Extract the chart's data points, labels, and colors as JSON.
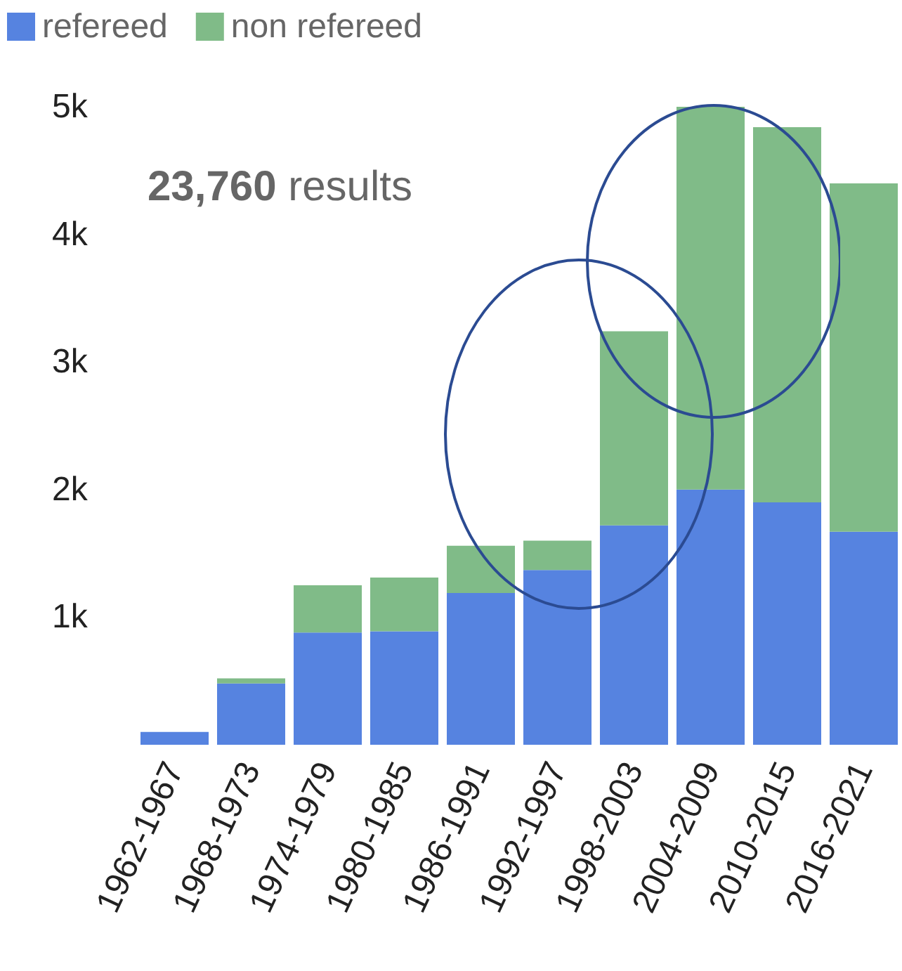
{
  "chart_data": {
    "type": "bar",
    "stacked": true,
    "categories": [
      "1962-1967",
      "1968-1973",
      "1974-1979",
      "1980-1985",
      "1986-1991",
      "1992-1997",
      "1998-2003",
      "2004-2009",
      "2010-2015",
      "2016-2021"
    ],
    "series": [
      {
        "name": "refereed",
        "color": "#5683e0",
        "values": [
          100,
          480,
          880,
          890,
          1190,
          1370,
          1720,
          2000,
          1900,
          1670
        ]
      },
      {
        "name": "non refereed",
        "color": "#80bb88",
        "values": [
          0,
          40,
          370,
          420,
          370,
          230,
          1520,
          3000,
          2940,
          2730
        ]
      }
    ],
    "ylim": [
      0,
      5000
    ],
    "yticks": [
      {
        "value": 1000,
        "label": "1k"
      },
      {
        "value": 2000,
        "label": "2k"
      },
      {
        "value": 3000,
        "label": "3k"
      },
      {
        "value": 4000,
        "label": "4k"
      },
      {
        "value": 5000,
        "label": "5k"
      }
    ],
    "annotations": [
      "23,760 results"
    ],
    "grid": false,
    "legend": "top left"
  }
}
